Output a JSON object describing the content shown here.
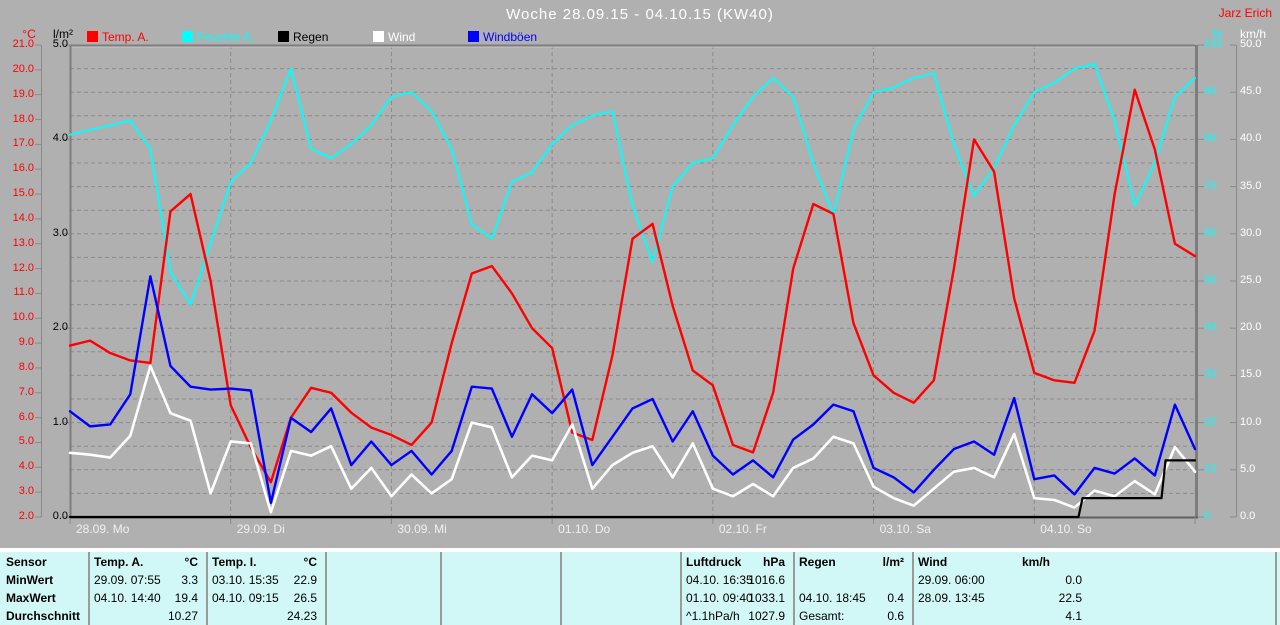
{
  "title": "Woche 28.09.15 - 04.10.15 (KW40)",
  "watermark": "Jarz Erich",
  "colors": {
    "background": "#b0b0b0",
    "grid": "#8a8a8a",
    "plot_border": "#7d7d7d",
    "table_background": "#d2f7f7",
    "table_separator": "#9a9a9a",
    "title_text": "#ffffff",
    "temp": "#ff0000",
    "humidity": "#00ffff",
    "rain": "#000000",
    "wind": "#ffffff",
    "gusts": "#0000ff"
  },
  "legend": [
    {
      "label": "Temp. A.",
      "color": "#ff0000"
    },
    {
      "label": "Feuchte A.",
      "color": "#00ffff"
    },
    {
      "label": "Regen",
      "color": "#000000"
    },
    {
      "label": "Wind",
      "color": "#ffffff"
    },
    {
      "label": "Windböen",
      "color": "#0000ff"
    }
  ],
  "axes": {
    "left_temp": {
      "header": "°C",
      "color": "#ff0000",
      "ticks": [
        "21.0",
        "20.0",
        "19.0",
        "18.0",
        "17.0",
        "16.0",
        "15.0",
        "14.0",
        "13.0",
        "12.0",
        "11.0",
        "10.0",
        "9.0",
        "8.0",
        "7.0",
        "6.0",
        "5.0",
        "4.0",
        "3.0",
        "2.0"
      ]
    },
    "left_rain": {
      "header": "l/m²",
      "color": "#000000",
      "ticks": [
        "5.0",
        "4.0",
        "3.0",
        "2.0",
        "1.0",
        "0.0"
      ]
    },
    "right_hum": {
      "header": "%",
      "color": "#00ffff",
      "ticks": [
        "100",
        "90",
        "80",
        "70",
        "60",
        "50",
        "40",
        "30",
        "20",
        "10",
        "0"
      ]
    },
    "right_wind": {
      "header": "km/h",
      "color": "#ffffff",
      "ticks": [
        "50.0",
        "45.0",
        "40.0",
        "35.0",
        "30.0",
        "25.0",
        "20.0",
        "15.0",
        "10.0",
        "5.0",
        "0.0"
      ]
    },
    "x": {
      "labels": [
        "28.09. Mo",
        "29.09. Di",
        "30.09. Mi",
        "01.10. Do",
        "02.10. Fr",
        "03.10. Sa",
        "04.10. So"
      ]
    }
  },
  "chart_data": {
    "type": "line",
    "title": "Woche 28.09.15 - 04.10.15 (KW40)",
    "x_range_hours": [
      0,
      168
    ],
    "x_step_hours": 3,
    "grid": {
      "horizontal_every_lm2": 0.25,
      "vertical_every_hours": 24,
      "style": "dashed"
    },
    "x_hours": [
      0,
      3,
      6,
      9,
      12,
      15,
      18,
      21,
      24,
      27,
      30,
      33,
      36,
      39,
      42,
      45,
      48,
      51,
      54,
      57,
      60,
      63,
      66,
      69,
      72,
      75,
      78,
      81,
      84,
      87,
      90,
      93,
      96,
      99,
      102,
      105,
      108,
      111,
      114,
      117,
      120,
      123,
      126,
      129,
      132,
      135,
      138,
      141,
      144,
      147,
      150,
      153,
      156,
      159,
      162,
      165,
      168
    ],
    "series": [
      {
        "name": "Feuchte A.",
        "unit": "%",
        "color": "#00ffff",
        "axis_range": [
          0,
          100
        ],
        "values": [
          81,
          82,
          83,
          84,
          78,
          52,
          45,
          58,
          71,
          75,
          84,
          95,
          78,
          76,
          79,
          83,
          89,
          90,
          86,
          78,
          62,
          59,
          71,
          73,
          79,
          83,
          85,
          86,
          66,
          54,
          70,
          75,
          76,
          83,
          89,
          93,
          89,
          75,
          64,
          82,
          90,
          91,
          93,
          94,
          79,
          68,
          74,
          83,
          90,
          92,
          95,
          96,
          84,
          66,
          75,
          89,
          93
        ]
      },
      {
        "name": "Temp. A.",
        "unit": "°C",
        "color": "#ff0000",
        "axis_range": [
          2,
          21
        ],
        "values": [
          8.9,
          9.1,
          8.6,
          8.3,
          8.2,
          14.3,
          15.0,
          11.5,
          6.5,
          4.8,
          3.4,
          6.0,
          7.2,
          7.0,
          6.2,
          5.6,
          5.3,
          4.9,
          5.8,
          9.0,
          11.8,
          12.1,
          11.0,
          9.6,
          8.8,
          5.4,
          5.1,
          8.5,
          13.2,
          13.8,
          10.5,
          7.9,
          7.3,
          4.9,
          4.6,
          7.0,
          12.0,
          14.6,
          14.2,
          9.8,
          7.7,
          7.0,
          6.6,
          7.5,
          12.0,
          17.2,
          15.9,
          10.8,
          7.8,
          7.5,
          7.4,
          9.5,
          15.0,
          19.2,
          16.8,
          13.0,
          12.5
        ]
      },
      {
        "name": "Windböen",
        "unit": "km/h",
        "color": "#0000ff",
        "axis_range": [
          0,
          50
        ],
        "values": [
          11.2,
          9.6,
          9.8,
          13.0,
          25.5,
          16.0,
          13.8,
          13.5,
          13.6,
          13.4,
          1.5,
          10.5,
          9.0,
          11.5,
          5.5,
          8.0,
          5.5,
          7.0,
          4.5,
          7.0,
          13.8,
          13.6,
          8.5,
          13.0,
          11.0,
          13.5,
          5.5,
          8.5,
          11.5,
          12.5,
          8.0,
          11.2,
          6.5,
          4.5,
          6.0,
          4.2,
          8.2,
          9.8,
          11.9,
          11.2,
          5.2,
          4.2,
          2.6,
          5.0,
          7.2,
          8.0,
          6.6,
          12.6,
          4.0,
          4.4,
          2.4,
          5.2,
          4.6,
          6.2,
          4.4,
          11.9,
          7.2
        ]
      },
      {
        "name": "Wind",
        "unit": "km/h",
        "color": "#ffffff",
        "axis_range": [
          0,
          50
        ],
        "values": [
          6.8,
          6.6,
          6.3,
          8.6,
          16.0,
          11.0,
          10.2,
          2.5,
          8.0,
          7.8,
          0.5,
          7.0,
          6.5,
          7.5,
          3.0,
          5.2,
          2.2,
          4.5,
          2.5,
          4.0,
          10.0,
          9.5,
          4.2,
          6.5,
          6.0,
          9.8,
          3.0,
          5.5,
          6.8,
          7.5,
          4.2,
          7.8,
          3.0,
          2.2,
          3.5,
          2.2,
          5.2,
          6.2,
          8.5,
          7.8,
          3.2,
          2.0,
          1.2,
          3.0,
          4.8,
          5.2,
          4.2,
          8.8,
          2.0,
          1.8,
          1.0,
          2.8,
          2.2,
          3.8,
          2.4,
          7.4,
          4.8
        ]
      },
      {
        "name": "Regen",
        "unit": "l/m²",
        "color": "#000000",
        "axis_range": [
          0,
          5
        ],
        "step_points": [
          [
            0,
            0
          ],
          [
            150.6,
            0
          ],
          [
            151.2,
            0.2
          ],
          [
            163.0,
            0.2
          ],
          [
            163.6,
            0.6
          ],
          [
            168,
            0.6
          ]
        ]
      }
    ]
  },
  "table": {
    "row_labels": [
      "Sensor",
      "MinWert",
      "MaxWert",
      "Durchschnitt"
    ],
    "columns": [
      {
        "name": "Temp. A.",
        "unit": "°C",
        "rows": [
          [
            "29.09. 07:55",
            "3.3"
          ],
          [
            "04.10. 14:40",
            "19.4"
          ],
          [
            "",
            "10.27"
          ]
        ]
      },
      {
        "name": "Temp. I.",
        "unit": "°C",
        "rows": [
          [
            "03.10. 15:35",
            "22.9"
          ],
          [
            "04.10. 09:15",
            "26.5"
          ],
          [
            "",
            "24.23"
          ]
        ]
      },
      {
        "name": "Luftdruck",
        "unit": "hPa",
        "rows": [
          [
            "04.10. 16:35",
            "1016.6"
          ],
          [
            "01.10. 09:40",
            "1033.1"
          ],
          [
            "^1.1hPa/h",
            "1027.9"
          ]
        ]
      },
      {
        "name": "Regen",
        "unit": "l/m²",
        "rows": [
          [
            "",
            ""
          ],
          [
            "04.10. 18:45",
            "0.4"
          ],
          [
            "Gesamt:",
            "0.6"
          ]
        ]
      },
      {
        "name": "Wind",
        "unit": "km/h",
        "rows": [
          [
            "29.09. 06:00",
            "0.0"
          ],
          [
            "28.09. 13:45",
            "22.5"
          ],
          [
            "",
            "4.1"
          ]
        ]
      }
    ]
  }
}
